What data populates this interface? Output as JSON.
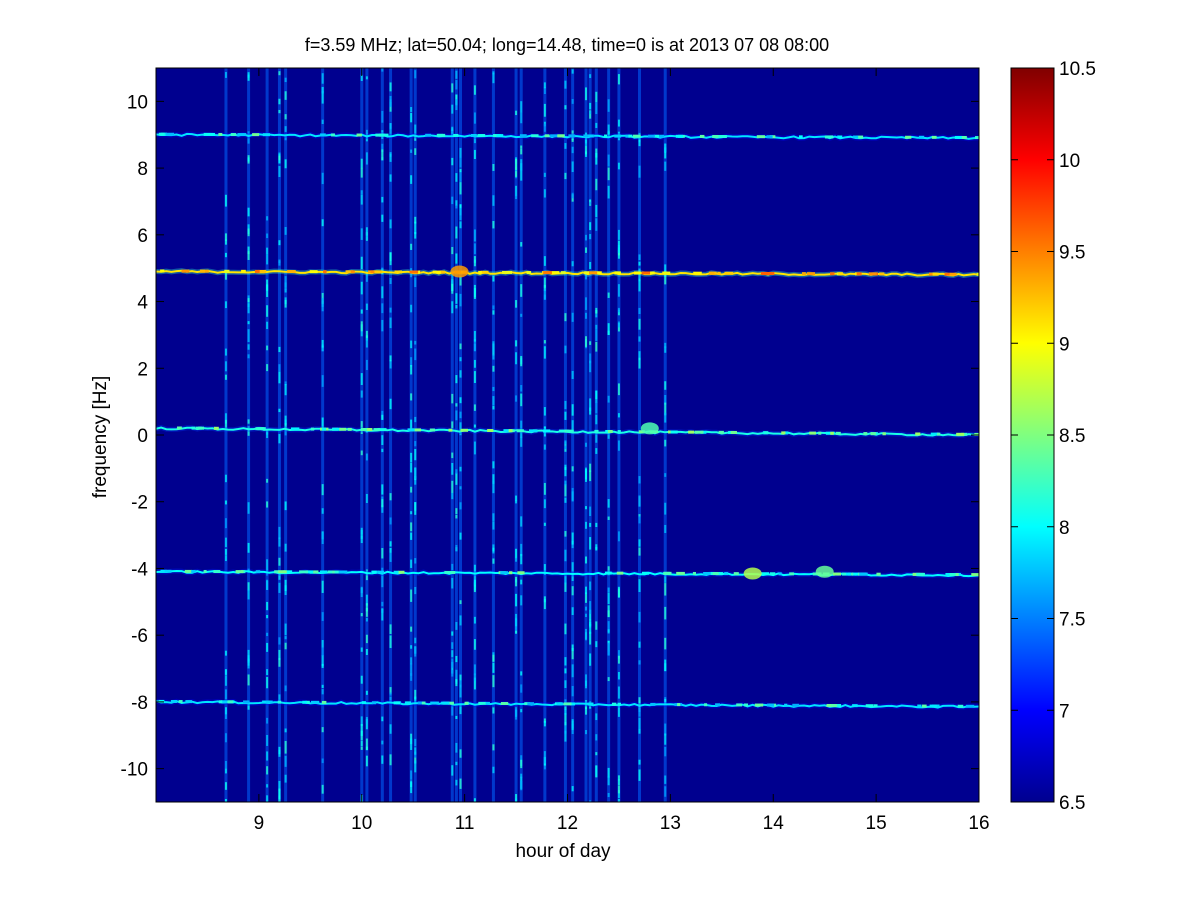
{
  "figure": {
    "title": "f=3.59 MHz;  lat=50.04; long=14.48, time=0 is at 2013 07 08 08:00",
    "xlabel": "hour of day",
    "ylabel": "frequency [Hz]"
  },
  "chart_data": {
    "type": "heatmap",
    "title": "f=3.59 MHz;  lat=50.04; long=14.48, time=0 is at 2013 07 08 08:00",
    "xlabel": "hour of day",
    "ylabel": "frequency [Hz]",
    "xlim": [
      8.0,
      16.0
    ],
    "ylim": [
      -11.0,
      11.0
    ],
    "x_ticks": [
      "9",
      "10",
      "11",
      "12",
      "13",
      "14",
      "15",
      "16"
    ],
    "x_tick_values": [
      9,
      10,
      11,
      12,
      13,
      14,
      15,
      16
    ],
    "y_ticks": [
      "10",
      "8",
      "6",
      "4",
      "2",
      "0",
      "-2",
      "-4",
      "-6",
      "-8",
      "-10"
    ],
    "y_tick_values": [
      10,
      8,
      6,
      4,
      2,
      0,
      -2,
      -4,
      -6,
      -8,
      -10
    ],
    "colormap": "jet",
    "clim": [
      6.5,
      10.5
    ],
    "colorbar_ticks": [
      "10.5",
      "10",
      "9.5",
      "9",
      "8.5",
      "8",
      "7.5",
      "7",
      "6.5"
    ],
    "colorbar_tick_values": [
      10.5,
      10,
      9.5,
      9,
      8.5,
      8,
      7.5,
      7,
      6.5
    ],
    "background_level": 6.6,
    "grid": false,
    "spectral_lines": [
      {
        "freq_hz": 9.0,
        "drift_end_hz": 8.9,
        "level": 7.9
      },
      {
        "freq_hz": 4.9,
        "drift_end_hz": 4.8,
        "level": 9.1
      },
      {
        "freq_hz": 0.2,
        "drift_end_hz": 0.0,
        "level": 8.1
      },
      {
        "freq_hz": -4.1,
        "drift_end_hz": -4.2,
        "level": 8.0
      },
      {
        "freq_hz": -8.0,
        "drift_end_hz": -8.15,
        "level": 7.9
      }
    ],
    "broadband_bursts_hour": [
      8.68,
      8.9,
      9.08,
      9.2,
      9.26,
      9.62,
      10.0,
      10.05,
      10.2,
      10.28,
      10.48,
      10.52,
      10.88,
      10.92,
      10.96,
      11.1,
      11.28,
      11.5,
      11.55,
      11.78,
      11.98,
      12.05,
      12.18,
      12.22,
      12.28,
      12.4,
      12.5,
      12.7,
      12.95
    ],
    "hotspots": [
      {
        "hour": 13.8,
        "freq_hz": -4.15,
        "level": 8.7
      },
      {
        "hour": 14.5,
        "freq_hz": -4.1,
        "level": 8.4
      },
      {
        "hour": 12.8,
        "freq_hz": 0.2,
        "level": 8.3
      },
      {
        "hour": 10.95,
        "freq_hz": 4.9,
        "level": 9.4
      }
    ]
  }
}
